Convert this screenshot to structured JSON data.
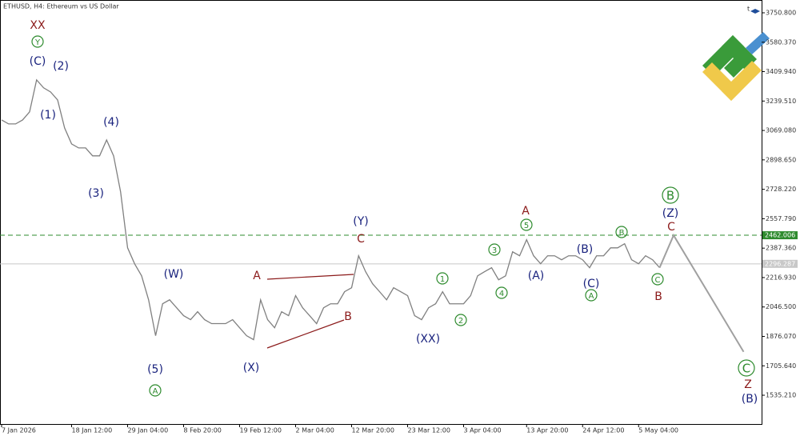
{
  "chart_data": {
    "type": "line",
    "title": "ETHUSD, H4:  Ethereum vs US Dollar",
    "color": "#808080",
    "categories": [
      "7 Jan 2026",
      null,
      null,
      null,
      null,
      null,
      null,
      null,
      null,
      null,
      "18 Jan 12:00",
      null,
      null,
      null,
      null,
      null,
      null,
      null,
      "29 Jan 04:00",
      null,
      null,
      null,
      null,
      null,
      null,
      null,
      "8 Feb 20:00",
      null,
      null,
      null,
      null,
      null,
      null,
      null,
      "19 Feb 12:00",
      null,
      null,
      null,
      null,
      null,
      null,
      null,
      "2 Mar 04:00",
      null,
      null,
      null,
      null,
      null,
      null,
      null,
      "12 Mar 20:00",
      null,
      null,
      null,
      null,
      null,
      null,
      null,
      "23 Mar 12:00",
      null,
      null,
      null,
      null,
      null,
      null,
      null,
      "3 Apr 04:00",
      null,
      null,
      null,
      null,
      null,
      null,
      null,
      null,
      "13 Apr 20:00",
      null,
      null,
      null,
      null,
      null,
      null,
      null,
      "24 Apr 12:00",
      null,
      null,
      null,
      null,
      null,
      null,
      null,
      "5 May 04:00",
      null,
      null,
      null
    ],
    "values": [
      3130,
      3107,
      3107,
      3130,
      3177,
      3362,
      3316,
      3292,
      3246,
      3084,
      2991,
      2968,
      2968,
      2922,
      2922,
      3014,
      2922,
      2713,
      2389,
      2297,
      2227,
      2088,
      1880,
      2065,
      2088,
      2042,
      1996,
      1973,
      2019,
      1973,
      1950,
      1950,
      1950,
      1973,
      1926,
      1880,
      1857,
      2088,
      1973,
      1926,
      2019,
      1996,
      2112,
      2042,
      1996,
      1950,
      2042,
      2065,
      2065,
      2135,
      2158,
      2343,
      2251,
      2181,
      2135,
      2088,
      2158,
      2135,
      2112,
      1996,
      1973,
      2042,
      2065,
      2135,
      2065,
      2065,
      2065,
      2112,
      2227,
      2251,
      2274,
      2204,
      2227,
      2366,
      2343,
      2436,
      2343,
      2297,
      2343,
      2343,
      2320,
      2343,
      2343,
      2320,
      2274,
      2343,
      2343,
      2389,
      2389,
      2413,
      2320,
      2297,
      2343,
      2320,
      2274
    ],
    "forecast": [
      2462,
      1787
    ],
    "forecast_color": "#a0a0a0",
    "ylim": [
      1368.5,
      3824.9
    ],
    "yticks": [
      {
        "value": 3750.8,
        "label": "3750.800"
      },
      {
        "value": 3580.37,
        "label": "3580.370"
      },
      {
        "value": 3409.94,
        "label": "3409.940"
      },
      {
        "value": 3239.51,
        "label": "3239.510"
      },
      {
        "value": 3069.08,
        "label": "3069.080"
      },
      {
        "value": 2898.65,
        "label": "2898.650"
      },
      {
        "value": 2728.22,
        "label": "2728.220"
      },
      {
        "value": 2557.79,
        "label": "2557.790"
      },
      {
        "value": 2387.36,
        "label": "2387.360"
      },
      {
        "value": 2216.93,
        "label": "2216.930"
      },
      {
        "value": 2046.5,
        "label": "2046.500"
      },
      {
        "value": 1876.07,
        "label": "1876.070"
      },
      {
        "value": 1705.64,
        "label": "1705.640"
      },
      {
        "value": 1535.21,
        "label": "1535.210"
      }
    ],
    "levels": [
      {
        "value": 2462.006,
        "label": "2462.006",
        "color": "#2e8b2e",
        "dashed": true
      },
      {
        "value": 2296.287,
        "label": "2296.287",
        "color": "#c8c8c8",
        "dashed": false
      }
    ],
    "annotations": [
      {
        "text": "XX",
        "kind": "red"
      },
      {
        "text": "Y",
        "kind": "circle"
      },
      {
        "text": "(C)",
        "kind": "navy"
      },
      {
        "text": "(2)",
        "kind": "navy"
      },
      {
        "text": "(1)",
        "kind": "navy"
      },
      {
        "text": "(4)",
        "kind": "navy"
      },
      {
        "text": "(3)",
        "kind": "navy"
      },
      {
        "text": "(W)",
        "kind": "navy"
      },
      {
        "text": "(5)",
        "kind": "navy"
      },
      {
        "text": "A",
        "kind": "circle"
      },
      {
        "text": "(X)",
        "kind": "navy"
      },
      {
        "text": "A",
        "kind": "red"
      },
      {
        "text": "B",
        "kind": "red"
      },
      {
        "text": "C",
        "kind": "red"
      },
      {
        "text": "(Y)",
        "kind": "navy"
      },
      {
        "text": "(XX)",
        "kind": "navy"
      },
      {
        "text": "1",
        "kind": "circle"
      },
      {
        "text": "2",
        "kind": "circle"
      },
      {
        "text": "3",
        "kind": "circle"
      },
      {
        "text": "4",
        "kind": "circle"
      },
      {
        "text": "A",
        "kind": "red"
      },
      {
        "text": "5",
        "kind": "circle"
      },
      {
        "text": "(A)",
        "kind": "navy"
      },
      {
        "text": "(B)",
        "kind": "navy"
      },
      {
        "text": "(C)",
        "kind": "navy"
      },
      {
        "text": "A",
        "kind": "circle"
      },
      {
        "text": "B",
        "kind": "circle"
      },
      {
        "text": "C",
        "kind": "circle"
      },
      {
        "text": "B",
        "kind": "red"
      },
      {
        "text": "B",
        "kind": "bigcircle"
      },
      {
        "text": "(Z)",
        "kind": "navy"
      },
      {
        "text": "C",
        "kind": "red"
      },
      {
        "text": "C",
        "kind": "bigcircle"
      },
      {
        "text": "Z",
        "kind": "red"
      },
      {
        "text": "(B)",
        "kind": "navy"
      }
    ]
  }
}
